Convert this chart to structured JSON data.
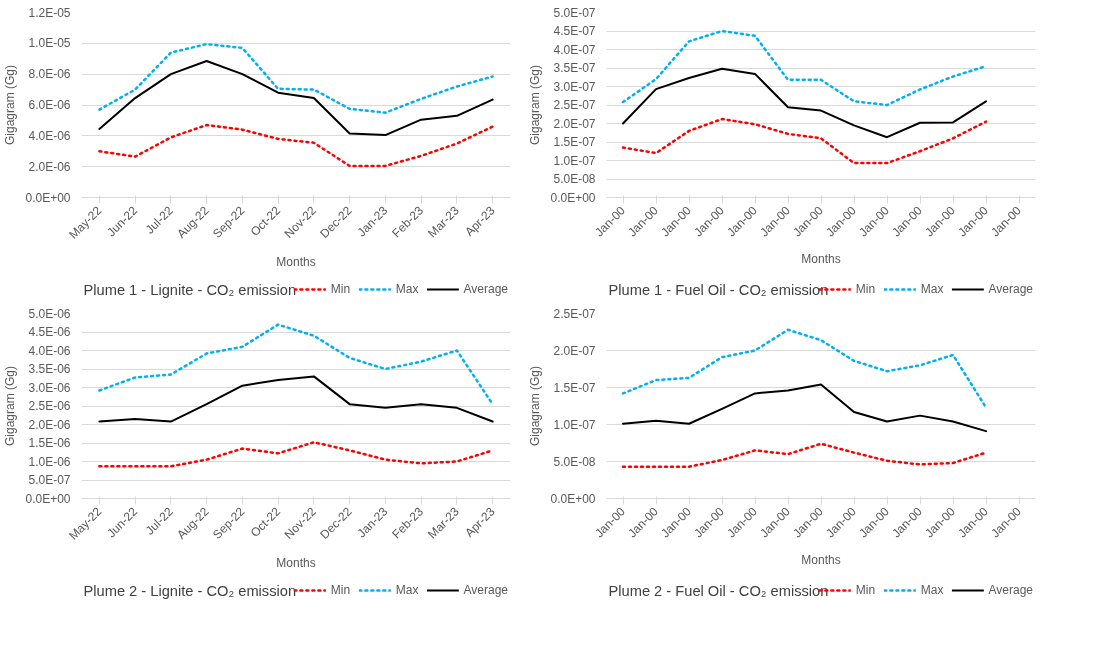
{
  "chart_data": [
    {
      "type": "line",
      "title": "Plume 1 - Lignite - CO₂ emission",
      "xlabel": "Months",
      "ylabel": "Gigagram (Gg)",
      "categories": [
        "May-22",
        "Jun-22",
        "Jul-22",
        "Aug-22",
        "Sep-22",
        "Oct-22",
        "Nov-22",
        "Dec-22",
        "Jan-23",
        "Feb-23",
        "Mar-23",
        "Apr-23"
      ],
      "series": [
        {
          "name": "Min",
          "color": "#ff0000",
          "line_style": "dotted",
          "values": [
            3e-06,
            2.65e-06,
            3.9e-06,
            4.7e-06,
            4.4e-06,
            3.8e-06,
            3.55e-06,
            2.05e-06,
            2.05e-06,
            2.7e-06,
            3.5e-06,
            4.6e-06
          ]
        },
        {
          "name": "Max",
          "color": "#00b0f0",
          "line_style": "dotted",
          "values": [
            5.7e-06,
            7e-06,
            9.4e-06,
            9.95e-06,
            9.7e-06,
            7.05e-06,
            7e-06,
            5.75e-06,
            5.5e-06,
            6.4e-06,
            7.2e-06,
            7.85e-06
          ]
        },
        {
          "name": "Average",
          "color": "#000000",
          "line_style": "solid",
          "values": [
            4.45e-06,
            6.45e-06,
            8e-06,
            8.85e-06,
            8e-06,
            6.8e-06,
            6.45e-06,
            4.15e-06,
            4.05e-06,
            5.05e-06,
            5.3e-06,
            6.35e-06
          ]
        }
      ],
      "ylim": [
        0,
        1.2e-05
      ],
      "yticks": [
        {
          "value": 0,
          "label": "0.0E+00"
        },
        {
          "value": 2e-06,
          "label": "2.0E-06"
        },
        {
          "value": 4e-06,
          "label": "4.0E-06"
        },
        {
          "value": 6e-06,
          "label": "6.0E-06"
        },
        {
          "value": 8e-06,
          "label": "8.0E-06"
        },
        {
          "value": 1e-05,
          "label": "1.0E-05"
        },
        {
          "value": 1.2e-05,
          "label": "1.2E-05"
        }
      ],
      "grid": "y",
      "legend": "bottom right",
      "marker": "none"
    },
    {
      "type": "line",
      "title": "Plume 1 - Fuel Oil - CO₂ emission",
      "xlabel": "Months",
      "ylabel": "Gigagram (Gg)",
      "categories": [
        "Jan-00",
        "Jan-00",
        "Jan-00",
        "Jan-00",
        "Jan-00",
        "Jan-00",
        "Jan-00",
        "Jan-00",
        "Jan-00",
        "Jan-00",
        "Jan-00",
        "Jan-00",
        "Jan-00"
      ],
      "series": [
        {
          "name": "Min",
          "color": "#ff0000",
          "line_style": "dotted",
          "values": [
            1.35e-07,
            1.2e-07,
            1.8e-07,
            2.12e-07,
            1.98e-07,
            1.72e-07,
            1.6e-07,
            9.3e-08,
            9.3e-08,
            1.25e-07,
            1.6e-07,
            2.05e-07,
            null
          ]
        },
        {
          "name": "Max",
          "color": "#00b0f0",
          "line_style": "dotted",
          "values": [
            2.58e-07,
            3.2e-07,
            4.22e-07,
            4.5e-07,
            4.37e-07,
            3.18e-07,
            3.18e-07,
            2.6e-07,
            2.5e-07,
            2.92e-07,
            3.27e-07,
            3.55e-07,
            null
          ]
        },
        {
          "name": "Average",
          "color": "#000000",
          "line_style": "solid",
          "values": [
            2e-07,
            2.93e-07,
            3.23e-07,
            3.48e-07,
            3.34e-07,
            2.44e-07,
            2.35e-07,
            1.95e-07,
            1.63e-07,
            2.02e-07,
            2.03e-07,
            2.6e-07,
            null
          ]
        }
      ],
      "ylim": [
        0,
        5e-07
      ],
      "yticks": [
        {
          "value": 0,
          "label": "0.0E+00"
        },
        {
          "value": 5e-08,
          "label": "5.0E-08"
        },
        {
          "value": 1e-07,
          "label": "1.0E-07"
        },
        {
          "value": 1.5e-07,
          "label": "1.5E-07"
        },
        {
          "value": 2e-07,
          "label": "2.0E-07"
        },
        {
          "value": 2.5e-07,
          "label": "2.5E-07"
        },
        {
          "value": 3e-07,
          "label": "3.0E-07"
        },
        {
          "value": 3.5e-07,
          "label": "3.5E-07"
        },
        {
          "value": 4e-07,
          "label": "4.0E-07"
        },
        {
          "value": 4.5e-07,
          "label": "4.5E-07"
        },
        {
          "value": 5e-07,
          "label": "5.0E-07"
        }
      ],
      "grid": "y",
      "legend": "bottom right",
      "marker": "none"
    },
    {
      "type": "line",
      "title": "Plume 2 - Lignite - CO₂ emission",
      "xlabel": "Months",
      "ylabel": "Gigagram (Gg)",
      "categories": [
        "May-22",
        "Jun-22",
        "Jul-22",
        "Aug-22",
        "Sep-22",
        "Oct-22",
        "Nov-22",
        "Dec-22",
        "Jan-23",
        "Feb-23",
        "Mar-23",
        "Apr-23"
      ],
      "series": [
        {
          "name": "Min",
          "color": "#ff0000",
          "line_style": "dotted",
          "values": [
            8.7e-07,
            8.7e-07,
            8.7e-07,
            1.05e-06,
            1.35e-06,
            1.22e-06,
            1.52e-06,
            1.3e-06,
            1.05e-06,
            9.5e-07,
            1e-06,
            1.3e-06
          ]
        },
        {
          "name": "Max",
          "color": "#00b0f0",
          "line_style": "dotted",
          "values": [
            2.92e-06,
            3.27e-06,
            3.35e-06,
            3.92e-06,
            4.1e-06,
            4.7e-06,
            4.4e-06,
            3.8e-06,
            3.5e-06,
            3.7e-06,
            4e-06,
            2.55e-06
          ]
        },
        {
          "name": "Average",
          "color": "#000000",
          "line_style": "solid",
          "values": [
            2.08e-06,
            2.15e-06,
            2.08e-06,
            2.55e-06,
            3.05e-06,
            3.2e-06,
            3.3e-06,
            2.55e-06,
            2.45e-06,
            2.55e-06,
            2.45e-06,
            2.08e-06
          ]
        }
      ],
      "ylim": [
        0,
        5e-06
      ],
      "yticks": [
        {
          "value": 0,
          "label": "0.0E+00"
        },
        {
          "value": 5e-07,
          "label": "5.0E-07"
        },
        {
          "value": 1e-06,
          "label": "1.0E-06"
        },
        {
          "value": 1.5e-06,
          "label": "1.5E-06"
        },
        {
          "value": 2e-06,
          "label": "2.0E-06"
        },
        {
          "value": 2.5e-06,
          "label": "2.5E-06"
        },
        {
          "value": 3e-06,
          "label": "3.0E-06"
        },
        {
          "value": 3.5e-06,
          "label": "3.5E-06"
        },
        {
          "value": 4e-06,
          "label": "4.0E-06"
        },
        {
          "value": 4.5e-06,
          "label": "4.5E-06"
        },
        {
          "value": 5e-06,
          "label": "5.0E-06"
        }
      ],
      "grid": "y",
      "legend": "bottom right",
      "marker": "none"
    },
    {
      "type": "line",
      "title": "Plume 2 - Fuel Oil - CO₂ emission",
      "xlabel": "Months",
      "ylabel": "Gigagram (Gg)",
      "categories": [
        "Jan-00",
        "Jan-00",
        "Jan-00",
        "Jan-00",
        "Jan-00",
        "Jan-00",
        "Jan-00",
        "Jan-00",
        "Jan-00",
        "Jan-00",
        "Jan-00",
        "Jan-00",
        "Jan-00"
      ],
      "series": [
        {
          "name": "Min",
          "color": "#ff0000",
          "line_style": "dotted",
          "values": [
            4.3e-08,
            4.3e-08,
            4.3e-08,
            5.2e-08,
            6.5e-08,
            6e-08,
            7.4e-08,
            6.2e-08,
            5.1e-08,
            4.6e-08,
            4.8e-08,
            6.2e-08,
            null
          ]
        },
        {
          "name": "Max",
          "color": "#00b0f0",
          "line_style": "dotted",
          "values": [
            1.42e-07,
            1.6e-07,
            1.63e-07,
            1.91e-07,
            2e-07,
            2.28e-07,
            2.14e-07,
            1.86e-07,
            1.72e-07,
            1.8e-07,
            1.94e-07,
            1.23e-07,
            null
          ]
        },
        {
          "name": "Average",
          "color": "#000000",
          "line_style": "solid",
          "values": [
            1.01e-07,
            1.05e-07,
            1.01e-07,
            1.21e-07,
            1.42e-07,
            1.46e-07,
            1.54e-07,
            1.17e-07,
            1.04e-07,
            1.12e-07,
            1.04e-07,
            9.1e-08,
            null
          ]
        }
      ],
      "ylim": [
        0,
        2.5e-07
      ],
      "yticks": [
        {
          "value": 0,
          "label": "0.0E+00"
        },
        {
          "value": 5e-08,
          "label": "5.0E-08"
        },
        {
          "value": 1e-07,
          "label": "1.0E-07"
        },
        {
          "value": 1.5e-07,
          "label": "1.5E-07"
        },
        {
          "value": 2e-07,
          "label": "2.0E-07"
        },
        {
          "value": 2.5e-07,
          "label": "2.5E-07"
        }
      ],
      "grid": "y",
      "legend": "bottom right",
      "marker": "none"
    }
  ]
}
